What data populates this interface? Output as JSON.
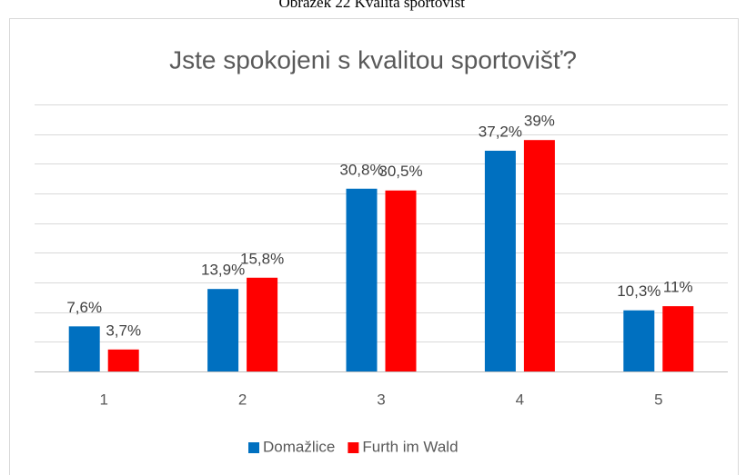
{
  "chart_data": {
    "type": "bar",
    "caption": "Obrázek 22 Kvalita sportovišť",
    "title": "Jste spokojeni s kvalitou sportovišť?",
    "categories": [
      "1",
      "2",
      "3",
      "4",
      "5"
    ],
    "series": [
      {
        "name": "Domažlice",
        "color": "#0070c0",
        "values": [
          7.6,
          13.9,
          30.8,
          37.2,
          10.3
        ],
        "value_labels": [
          "7,6%",
          "13,9%",
          "30,8%",
          "37,2%",
          "10,3%"
        ]
      },
      {
        "name": "Furth im Wald",
        "color": "#ff0000",
        "values": [
          3.7,
          15.8,
          30.5,
          39,
          11
        ],
        "value_labels": [
          "3,7%",
          "15,8%",
          "30,5%",
          "39%",
          "11%"
        ]
      }
    ],
    "ylim": [
      0,
      45
    ],
    "yticks": [
      0,
      5,
      10,
      15,
      20,
      25,
      30,
      35,
      40,
      45
    ],
    "grid": true,
    "legend": "bottom"
  }
}
